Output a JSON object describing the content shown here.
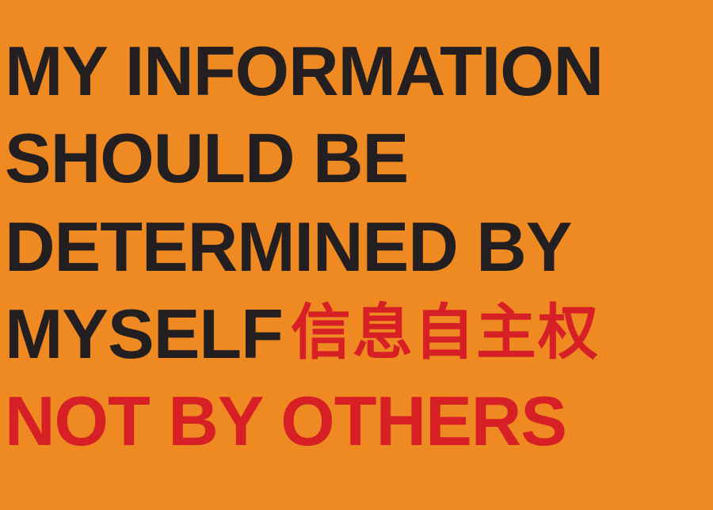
{
  "poster": {
    "lines": [
      "MY INFORMATION",
      "SHOULD BE",
      "DETERMINED BY",
      "MYSELF",
      "NOT BY OTHERS"
    ],
    "cjk_text": "信息自主权"
  },
  "colors": {
    "background": "#ef8a23",
    "text_primary": "#231f20",
    "text_accent": "#d71f26"
  }
}
